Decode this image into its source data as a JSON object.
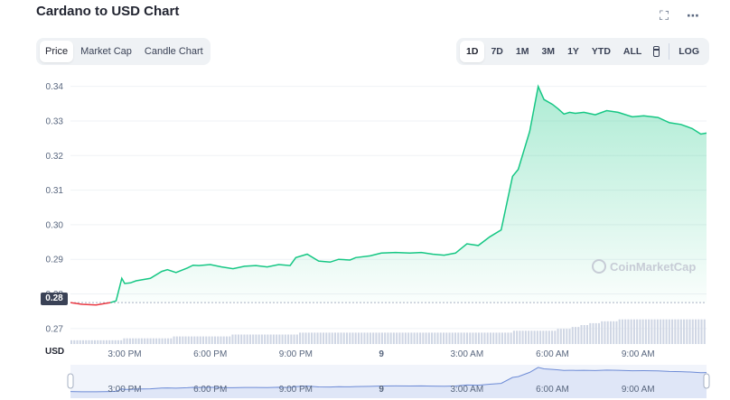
{
  "header": {
    "title": "Cardano to USD Chart",
    "fullscreen_icon": "expand-icon",
    "more_icon": "more-icon"
  },
  "left_tabs": [
    {
      "label": "Price",
      "active": true
    },
    {
      "label": "Market Cap",
      "active": false
    },
    {
      "label": "Candle Chart",
      "active": false
    }
  ],
  "range_tabs": [
    {
      "label": "1D",
      "active": true
    },
    {
      "label": "7D",
      "active": false
    },
    {
      "label": "1M",
      "active": false
    },
    {
      "label": "3M",
      "active": false
    },
    {
      "label": "1Y",
      "active": false
    },
    {
      "label": "YTD",
      "active": false
    },
    {
      "label": "ALL",
      "active": false
    }
  ],
  "calendar_icon": "calendar-icon",
  "log_label": "LOG",
  "watermark": "CoinMarketCap",
  "current_price_label": "0.28",
  "currency_label": "USD",
  "colors": {
    "line": "#16c784",
    "fill": "#16c784",
    "down": "#ea3943",
    "grid": "#eff2f5",
    "volume": "#cfd6e4",
    "nav_fill": "#dfe6f7",
    "nav_line": "#6d8bd6"
  },
  "chart_data": {
    "type": "line",
    "title": "Cardano to USD Chart",
    "xlabel": "",
    "ylabel": "",
    "ylim": [
      0.265,
      0.342
    ],
    "y_ticks": [
      0.27,
      0.28,
      0.29,
      0.3,
      0.31,
      0.32,
      0.33,
      0.34
    ],
    "y_tick_labels": [
      "0.27",
      "0.28",
      "0.29",
      "0.30",
      "0.31",
      "0.32",
      "0.33",
      "0.34"
    ],
    "x_ticks": [
      15,
      18,
      21,
      24,
      27,
      30,
      33
    ],
    "x_tick_labels": [
      "3:00 PM",
      "6:00 PM",
      "9:00 PM",
      "9",
      "3:00 AM",
      "6:00 AM",
      "9:00 AM"
    ],
    "xlim": [
      13.1,
      35.4
    ],
    "grid": true,
    "series": [
      {
        "x": [
          13.1,
          13.5,
          14.0,
          14.5,
          14.7,
          14.9,
          15.0,
          15.2,
          15.4,
          15.9,
          16.3,
          16.5,
          16.8,
          17.2,
          17.4,
          17.6,
          18.0,
          18.4,
          18.8,
          19.2,
          19.6,
          20.0,
          20.4,
          20.8,
          21.0,
          21.4,
          21.8,
          22.2,
          22.5,
          22.9,
          23.1,
          23.6,
          24.0,
          24.5,
          25.0,
          25.4,
          25.8,
          26.2,
          26.6,
          27.0,
          27.4,
          27.8,
          28.2,
          28.6,
          28.8,
          29.2,
          29.5,
          29.7,
          30.0,
          30.2,
          30.4,
          30.6,
          30.8,
          31.1,
          31.5,
          31.9,
          32.3,
          32.8,
          33.2,
          33.7,
          34.1,
          34.5,
          34.9,
          35.2,
          35.4
        ],
        "y": [
          0.2775,
          0.277,
          0.2768,
          0.2775,
          0.278,
          0.2845,
          0.283,
          0.2832,
          0.2838,
          0.2845,
          0.2865,
          0.287,
          0.2862,
          0.2875,
          0.2883,
          0.2882,
          0.2885,
          0.2878,
          0.2873,
          0.288,
          0.2882,
          0.2878,
          0.2885,
          0.2882,
          0.2905,
          0.2915,
          0.2895,
          0.2892,
          0.29,
          0.2898,
          0.2905,
          0.291,
          0.2918,
          0.292,
          0.2918,
          0.292,
          0.2915,
          0.2912,
          0.2918,
          0.2945,
          0.294,
          0.2965,
          0.2985,
          0.314,
          0.316,
          0.327,
          0.34,
          0.3362,
          0.3348,
          0.3335,
          0.332,
          0.3325,
          0.3322,
          0.3325,
          0.3318,
          0.333,
          0.3325,
          0.3312,
          0.3315,
          0.331,
          0.3295,
          0.329,
          0.3278,
          0.3262,
          0.3265
        ]
      }
    ],
    "down_segment_until_x": 14.5,
    "reference_price": 0.2775,
    "volume": [
      2,
      2,
      2,
      2,
      2,
      2,
      2,
      2,
      2,
      2,
      2,
      2,
      2,
      2,
      2,
      2,
      2,
      2,
      3,
      3,
      3,
      3,
      3,
      3,
      3,
      3,
      3,
      3,
      3,
      3,
      3,
      3,
      3,
      3,
      3,
      4,
      4,
      4,
      4,
      4,
      4,
      4,
      4,
      4,
      4,
      4,
      4,
      4,
      4,
      4,
      4,
      4,
      4,
      4,
      4,
      5,
      5,
      5,
      5,
      5,
      5,
      5,
      5,
      5,
      5,
      5,
      5,
      5,
      5,
      5,
      5,
      5,
      5,
      5,
      5,
      5,
      5,
      5,
      6,
      6,
      6,
      6,
      6,
      6,
      6,
      6,
      6,
      6,
      6,
      6,
      6,
      6,
      6,
      6,
      6,
      6,
      6,
      6,
      6,
      6,
      6,
      6,
      6,
      6,
      6,
      6,
      6,
      6,
      6,
      6,
      6,
      6,
      6,
      6,
      6,
      6,
      6,
      6,
      6,
      6,
      6,
      6,
      6,
      6,
      6,
      6,
      6,
      6,
      6,
      6,
      6,
      6,
      6,
      6,
      6,
      6,
      6,
      6,
      6,
      6,
      6,
      6,
      6,
      6,
      6,
      6,
      6,
      6,
      6,
      6,
      6,
      7,
      7,
      7,
      7,
      7,
      7,
      7,
      7,
      7,
      7,
      7,
      7,
      7,
      7,
      7,
      8,
      8,
      8,
      8,
      8,
      9,
      9,
      9,
      10,
      10,
      10,
      11,
      11,
      11,
      11,
      12,
      12,
      12,
      12,
      12,
      12,
      13,
      13,
      13,
      13,
      13,
      13,
      13,
      13,
      13,
      13,
      13,
      13,
      13,
      13,
      13,
      13,
      13,
      13,
      13,
      13,
      13,
      13,
      13,
      13,
      13,
      13,
      13,
      13,
      13,
      13
    ]
  }
}
